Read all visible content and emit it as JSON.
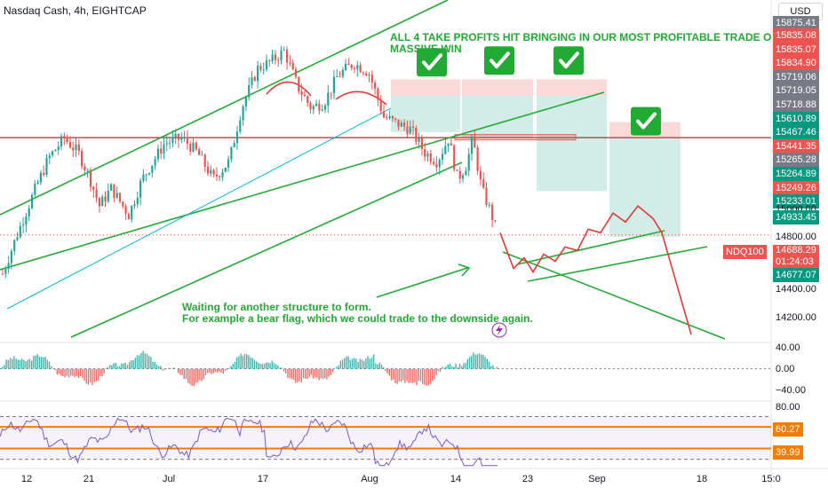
{
  "header": {
    "symbol_line": "Nasdaq Cash, 4h, EIGHTCAP",
    "currency_button": "USD"
  },
  "annotations": {
    "top_message": "ALL 4 TAKE PROFITS HIT BRINGING IN OUR MOST PROFITABLE TRADE O\nMASSIVE WIN",
    "bottom_message": "Waiting for another structure to form.\nFor example a bear flag, which we could trade to the downside again."
  },
  "price_axis": {
    "top_partial": "15875.41",
    "tags": [
      {
        "text": "15835.08",
        "color": "#ef5350"
      },
      {
        "text": "15835.07",
        "color": "#ef5350"
      },
      {
        "text": "15834.90",
        "color": "#ef5350"
      },
      {
        "text": "15719.06",
        "color": "#787b86"
      },
      {
        "text": "15719.05",
        "color": "#787b86"
      },
      {
        "text": "15718.88",
        "color": "#787b86"
      },
      {
        "text": "15610.89",
        "color": "#089981"
      },
      {
        "text": "15467.46",
        "color": "#089981"
      },
      {
        "text": "15441.35",
        "color": "#ef5350"
      },
      {
        "text": "15265.28",
        "color": "#787b86"
      },
      {
        "text": "15264.89",
        "color": "#089981"
      },
      {
        "text": "15249.26",
        "color": "#ef5350"
      },
      {
        "text": "15233.01",
        "color": "#089981"
      }
    ],
    "plain_labels": [
      "15000.00",
      "14800.00",
      "14400.00",
      "14200.00"
    ],
    "tag_14933": "14933.45",
    "current_symbol": "NDQ100",
    "current_price": "14688.29",
    "countdown": "01:24:03",
    "tag_14677": "14677.07"
  },
  "macd_axis": [
    "40.00",
    "0.00",
    "−40.00"
  ],
  "rsi_axis": {
    "top": "80.00",
    "upper": "60.27",
    "lower": "39.99"
  },
  "time_axis": [
    "12",
    "21",
    "Jul",
    "17",
    "Aug",
    "14",
    "23",
    "Sep",
    "18",
    "15:0"
  ],
  "colors": {
    "up": "#26a69a",
    "down": "#ef5350",
    "channel": "#22ab34",
    "ema": "#00bcd4",
    "rsi": "#7e57c2",
    "rsi_level": "#f57c00"
  },
  "chart_data": {
    "type": "candlestick",
    "instrument": "Nasdaq Cash",
    "timeframe": "4h",
    "price_range": [
      14100,
      15880
    ],
    "close_path": [
      {
        "x": 3,
        "y": 14470
      },
      {
        "x": 20,
        "y": 14700
      },
      {
        "x": 40,
        "y": 14950
      },
      {
        "x": 55,
        "y": 15120
      },
      {
        "x": 72,
        "y": 15230
      },
      {
        "x": 88,
        "y": 15150
      },
      {
        "x": 100,
        "y": 15020
      },
      {
        "x": 112,
        "y": 14850
      },
      {
        "x": 125,
        "y": 14950
      },
      {
        "x": 145,
        "y": 14800
      },
      {
        "x": 160,
        "y": 15000
      },
      {
        "x": 185,
        "y": 15200
      },
      {
        "x": 205,
        "y": 15230
      },
      {
        "x": 222,
        "y": 15150
      },
      {
        "x": 240,
        "y": 15000
      },
      {
        "x": 258,
        "y": 15100
      },
      {
        "x": 272,
        "y": 15400
      },
      {
        "x": 290,
        "y": 15620
      },
      {
        "x": 305,
        "y": 15660
      },
      {
        "x": 320,
        "y": 15720
      },
      {
        "x": 335,
        "y": 15520
      },
      {
        "x": 350,
        "y": 15400
      },
      {
        "x": 365,
        "y": 15430
      },
      {
        "x": 380,
        "y": 15580
      },
      {
        "x": 398,
        "y": 15650
      },
      {
        "x": 415,
        "y": 15600
      },
      {
        "x": 432,
        "y": 15350
      },
      {
        "x": 448,
        "y": 15310
      },
      {
        "x": 462,
        "y": 15280
      },
      {
        "x": 478,
        "y": 15150
      },
      {
        "x": 492,
        "y": 15100
      },
      {
        "x": 505,
        "y": 15230
      },
      {
        "x": 515,
        "y": 15000
      },
      {
        "x": 525,
        "y": 15080
      },
      {
        "x": 532,
        "y": 15230
      },
      {
        "x": 542,
        "y": 14950
      },
      {
        "x": 552,
        "y": 14820
      },
      {
        "x": 560,
        "y": 14700
      }
    ],
    "projection_path": [
      {
        "x": 563,
        "y": 14700
      },
      {
        "x": 578,
        "y": 14500
      },
      {
        "x": 590,
        "y": 14560
      },
      {
        "x": 600,
        "y": 14480
      },
      {
        "x": 612,
        "y": 14580
      },
      {
        "x": 625,
        "y": 14540
      },
      {
        "x": 636,
        "y": 14620
      },
      {
        "x": 650,
        "y": 14600
      },
      {
        "x": 662,
        "y": 14720
      },
      {
        "x": 676,
        "y": 14700
      },
      {
        "x": 690,
        "y": 14810
      },
      {
        "x": 704,
        "y": 14760
      },
      {
        "x": 718,
        "y": 14850
      },
      {
        "x": 735,
        "y": 14780
      },
      {
        "x": 745,
        "y": 14700
      },
      {
        "x": 778,
        "y": 14130
      }
    ],
    "positions": [
      {
        "x0": 440,
        "x1": 518,
        "entry": 15467,
        "stop": 15560,
        "target": 15264
      },
      {
        "x0": 520,
        "x1": 600,
        "entry": 15467,
        "stop": 15560,
        "target": 15233
      },
      {
        "x0": 604,
        "x1": 683,
        "entry": 15467,
        "stop": 15560,
        "target": 14933
      },
      {
        "x0": 686,
        "x1": 766,
        "entry": 15233,
        "stop": 15320,
        "target": 14677
      }
    ],
    "checkmarks": [
      {
        "x": 486,
        "y": 15660
      },
      {
        "x": 562,
        "y": 15670
      },
      {
        "x": 640,
        "y": 15670
      },
      {
        "x": 727,
        "y": 15330
      }
    ],
    "horizontal_level": 15233,
    "macd_range": [
      -60,
      50
    ],
    "rsi_levels": [
      60.27,
      39.99
    ],
    "rsi_range": [
      23,
      82
    ]
  }
}
